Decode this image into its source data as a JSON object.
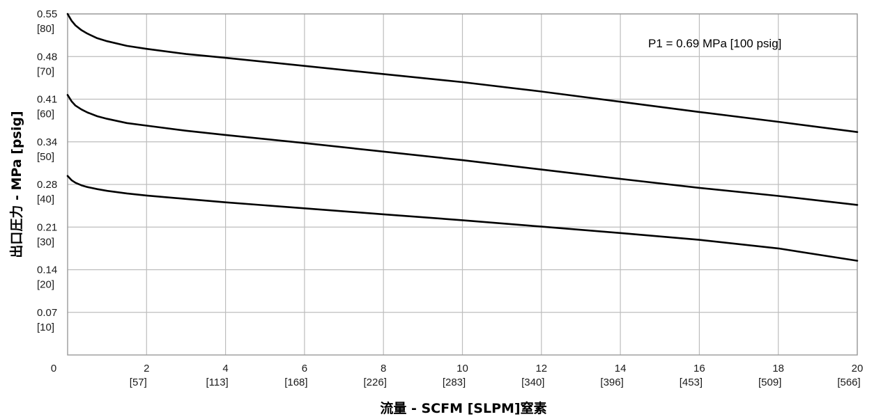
{
  "chart_data": {
    "type": "line",
    "xlabel": "流量 - SCFM [SLPM]窒素",
    "ylabel": "出口圧力 - MPa [psig]",
    "annotation": "P1 = 0.69 MPa [100 psig]",
    "xlim": [
      0,
      20
    ],
    "ylim": [
      0,
      80
    ],
    "grid": true,
    "x_origin_label": "0",
    "x_ticks": [
      {
        "value": 2,
        "primary": "2",
        "secondary": "[57]"
      },
      {
        "value": 4,
        "primary": "4",
        "secondary": "[113]"
      },
      {
        "value": 6,
        "primary": "6",
        "secondary": "[168]"
      },
      {
        "value": 8,
        "primary": "8",
        "secondary": "[226]"
      },
      {
        "value": 10,
        "primary": "10",
        "secondary": "[283]"
      },
      {
        "value": 12,
        "primary": "12",
        "secondary": "[340]"
      },
      {
        "value": 14,
        "primary": "14",
        "secondary": "[396]"
      },
      {
        "value": 16,
        "primary": "16",
        "secondary": "[453]"
      },
      {
        "value": 18,
        "primary": "18",
        "secondary": "[509]"
      },
      {
        "value": 20,
        "primary": "20",
        "secondary": "[566]"
      }
    ],
    "y_ticks": [
      {
        "value": 80,
        "primary": "0.55",
        "secondary": "[80]"
      },
      {
        "value": 70,
        "primary": "0.48",
        "secondary": "[70]"
      },
      {
        "value": 60,
        "primary": "0.41",
        "secondary": "[60]"
      },
      {
        "value": 50,
        "primary": "0.34",
        "secondary": "[50]"
      },
      {
        "value": 40,
        "primary": "0.28",
        "secondary": "[40]"
      },
      {
        "value": 30,
        "primary": "0.21",
        "secondary": "[30]"
      },
      {
        "value": 20,
        "primary": "0.14",
        "secondary": "[20]"
      },
      {
        "value": 10,
        "primary": "0.07",
        "secondary": "[10]"
      }
    ],
    "series": [
      {
        "x": [
          0,
          0.1,
          0.2,
          0.35,
          0.5,
          0.75,
          1,
          1.5,
          2,
          3,
          4,
          6,
          8,
          10,
          12,
          14,
          16,
          18,
          20
        ],
        "y": [
          80,
          78.4,
          77.3,
          76.2,
          75.4,
          74.3,
          73.6,
          72.5,
          71.8,
          70.6,
          69.7,
          67.8,
          65.9,
          64.0,
          61.8,
          59.4,
          57.0,
          54.7,
          52.3
        ]
      },
      {
        "x": [
          0,
          0.1,
          0.2,
          0.35,
          0.5,
          0.75,
          1,
          1.5,
          2,
          3,
          4,
          6,
          8,
          10,
          12,
          14,
          16,
          18,
          20
        ],
        "y": [
          61.0,
          59.5,
          58.5,
          57.6,
          56.9,
          56.0,
          55.4,
          54.4,
          53.8,
          52.6,
          51.6,
          49.7,
          47.7,
          45.7,
          43.5,
          41.3,
          39.2,
          37.3,
          35.2
        ]
      },
      {
        "x": [
          0,
          0.1,
          0.2,
          0.35,
          0.5,
          0.75,
          1,
          1.5,
          2,
          3,
          4,
          6,
          8,
          10,
          12,
          14,
          16,
          18,
          20
        ],
        "y": [
          42.0,
          41.0,
          40.4,
          39.8,
          39.4,
          38.9,
          38.5,
          37.9,
          37.4,
          36.6,
          35.8,
          34.4,
          33.0,
          31.6,
          30.1,
          28.6,
          27.0,
          25.0,
          22.1
        ]
      }
    ]
  }
}
